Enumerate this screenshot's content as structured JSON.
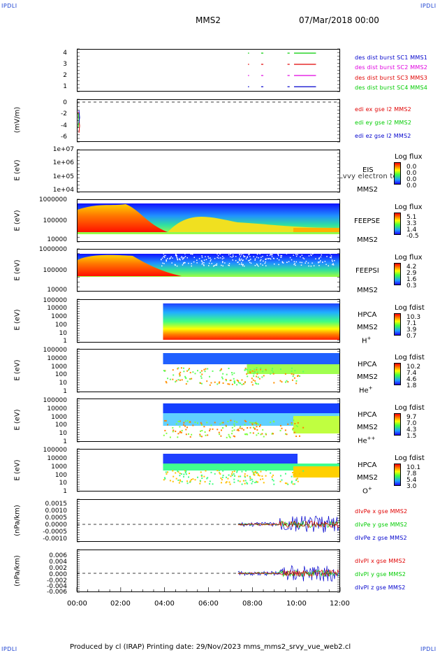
{
  "corners": {
    "tl": "IPDLI",
    "tr": "IPDLI",
    "bl": "IPDLI",
    "br": "IPDLI"
  },
  "header": {
    "spacecraft": "MMS2",
    "datetime": "07/Mar/2018 00:00"
  },
  "footer": {
    "text": "Produced by cl (IRAP)   Printing date: 29/Nov/2023   mms_mms2_srvy_vue_web2.cl"
  },
  "colors": {
    "red": "#e00000",
    "green": "#00cc00",
    "blue": "#0000cc",
    "magenta": "#e000e0",
    "sky": "#1a3fd0"
  },
  "chart_data": [
    {
      "type": "line",
      "panel": "burst",
      "ylim": [
        0.5,
        4.5
      ],
      "yticks": [
        "4",
        "3",
        "2",
        "1"
      ],
      "series": [
        {
          "name": "des dist burst SC1 MMS1",
          "color": "#0000cc"
        },
        {
          "name": "des dist burst SC2 MMS2",
          "color": "#e000e0"
        },
        {
          "name": "des dist burst SC3 MMS3",
          "color": "#e00000"
        },
        {
          "name": "des dist burst SC4 MMS4",
          "color": "#00cc00"
        }
      ]
    },
    {
      "type": "line",
      "panel": "edi",
      "ylabel": "(mV/m)",
      "yticks": [
        "0",
        "-2",
        "-4",
        "-6"
      ],
      "series": [
        {
          "name": "edi ex gse l2 MMS2",
          "color": "#e00000"
        },
        {
          "name": "edi ey gse l2 MMS2",
          "color": "#00cc00"
        },
        {
          "name": "edi ez gse l2 MMS2",
          "color": "#0000cc"
        }
      ]
    },
    {
      "type": "heatmap",
      "panel": "eis",
      "ylabel": "E (eV)",
      "yticks": [
        "1e+07",
        "1e+06",
        "1e+05",
        "1e+04"
      ],
      "right": [
        "EIS",
        "MMS2"
      ],
      "overlay_text": "Lvvy electron to",
      "cbar_title": "Log flux",
      "cbar_values": [
        "0.0",
        "0.0",
        "0.0",
        "0.0"
      ]
    },
    {
      "type": "heatmap",
      "panel": "feepse",
      "ylabel": "E (eV)",
      "yticks": [
        "1000000",
        "100000",
        "10000"
      ],
      "right": [
        "FEEPSE",
        "MMS2"
      ],
      "cbar_title": "Log flux",
      "cbar_values": [
        "5.1",
        "3.3",
        "1.4",
        "-0.5"
      ]
    },
    {
      "type": "heatmap",
      "panel": "feepsi",
      "ylabel": "E (eV)",
      "yticks": [
        "1000000",
        "100000",
        "10000"
      ],
      "right": [
        "FEEPSI",
        "MMS2"
      ],
      "cbar_title": "Log flux",
      "cbar_values": [
        "4.2",
        "2.9",
        "1.6",
        "0.3"
      ]
    },
    {
      "type": "heatmap",
      "panel": "hpca_h",
      "ylabel": "E (eV)",
      "yticks": [
        "100000",
        "10000",
        "1000",
        "100",
        "10",
        "1"
      ],
      "right": [
        "HPCA",
        "MMS2"
      ],
      "species": "H",
      "species_sup": "+",
      "cbar_title": "Log fdist",
      "cbar_values": [
        "10.3",
        "7.1",
        "3.9",
        "0.7"
      ]
    },
    {
      "type": "heatmap",
      "panel": "hpca_he",
      "ylabel": "E (eV)",
      "yticks": [
        "100000",
        "10000",
        "1000",
        "100",
        "10",
        "1"
      ],
      "right": [
        "HPCA",
        "MMS2"
      ],
      "species": "He",
      "species_sup": "+",
      "cbar_title": "Log fdist",
      "cbar_values": [
        "10.2",
        "7.4",
        "4.6",
        "1.8"
      ]
    },
    {
      "type": "heatmap",
      "panel": "hpca_hepp",
      "ylabel": "E (eV)",
      "yticks": [
        "100000",
        "10000",
        "1000",
        "100",
        "10",
        "1"
      ],
      "right": [
        "HPCA",
        "MMS2"
      ],
      "species": "He",
      "species_sup": "++",
      "cbar_title": "Log fdist",
      "cbar_values": [
        "9.7",
        "7.0",
        "4.3",
        "1.5"
      ]
    },
    {
      "type": "heatmap",
      "panel": "hpca_o",
      "ylabel": "E (eV)",
      "yticks": [
        "100000",
        "10000",
        "1000",
        "100",
        "10",
        "1"
      ],
      "right": [
        "HPCA",
        "MMS2"
      ],
      "species": "O",
      "species_sup": "+",
      "cbar_title": "Log fdist",
      "cbar_values": [
        "10.1",
        "7.8",
        "5.4",
        "3.0"
      ]
    },
    {
      "type": "line",
      "panel": "divpe",
      "ylabel": "(nPa/km)",
      "yticks": [
        "0.0015",
        "0.0010",
        "0.0005",
        "0.0000",
        "-0.0005",
        "-0.0010"
      ],
      "series": [
        {
          "name": "dIvPe x gse MMS2",
          "color": "#e00000"
        },
        {
          "name": "dIvPe y gse MMS2",
          "color": "#00cc00"
        },
        {
          "name": "dIvPe z gse MMS2",
          "color": "#0000cc"
        }
      ]
    },
    {
      "type": "line",
      "panel": "divpi",
      "ylabel": "(nPa/km)",
      "yticks": [
        "0.006",
        "0.004",
        "0.002",
        "0.000",
        "-0.002",
        "-0.004",
        "-0.006"
      ],
      "series": [
        {
          "name": "dIvPI x gse MMS2",
          "color": "#e00000"
        },
        {
          "name": "dIvPI y gse MMS2",
          "color": "#00cc00"
        },
        {
          "name": "dIvPI z gse MMS2",
          "color": "#0000cc"
        }
      ]
    }
  ],
  "x_axis": {
    "ticks": [
      "00:00",
      "02:00",
      "04:00",
      "06:00",
      "08:00",
      "10:00",
      "12:00"
    ],
    "xlim": [
      "00:00",
      "12:00"
    ]
  }
}
